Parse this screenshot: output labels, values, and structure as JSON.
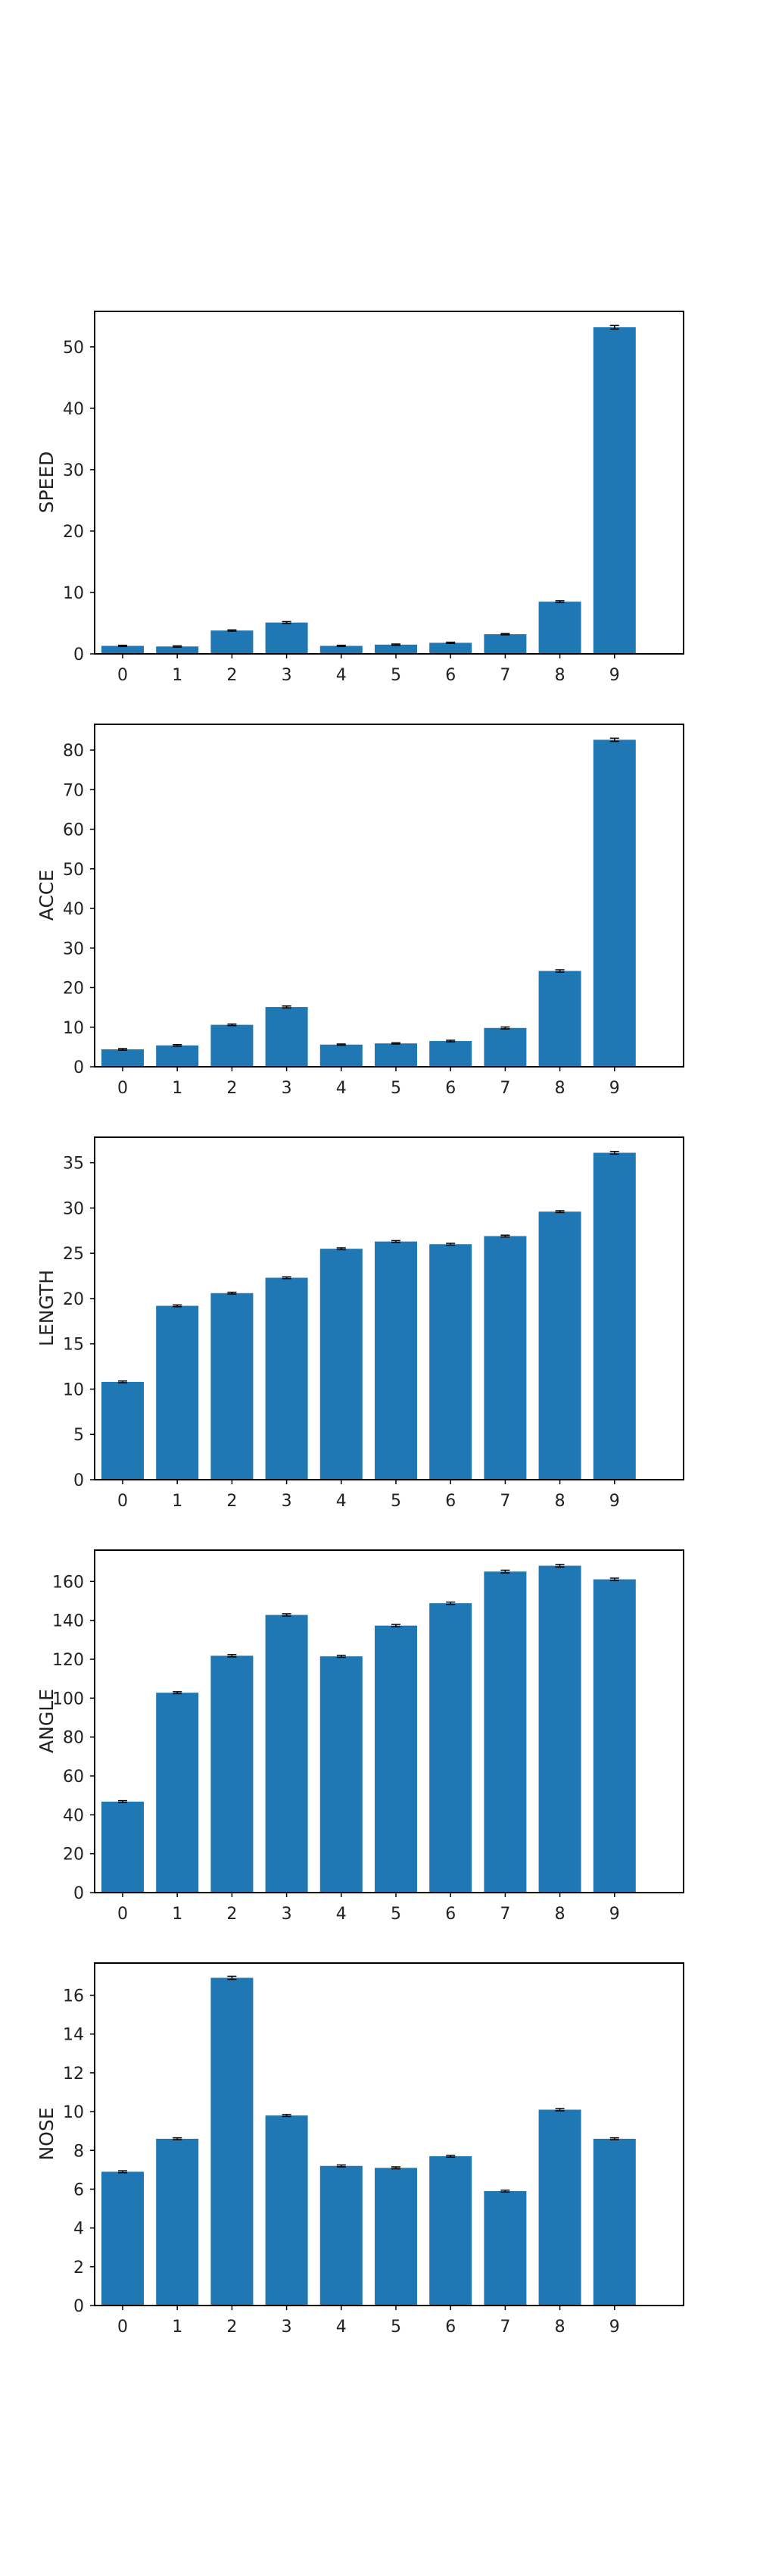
{
  "bar_color": "#1f77b4",
  "errorbar_color": "#000000",
  "frame_color": "#000000",
  "chart_data": [
    {
      "type": "bar",
      "categories": [
        "0",
        "1",
        "2",
        "3",
        "4",
        "5",
        "6",
        "7",
        "8",
        "9"
      ],
      "values": [
        1.3,
        1.2,
        3.8,
        5.1,
        1.3,
        1.5,
        1.8,
        3.2,
        8.5,
        53.2
      ],
      "errors": [
        0.1,
        0.1,
        0.1,
        0.15,
        0.1,
        0.1,
        0.1,
        0.1,
        0.15,
        0.3
      ],
      "ylabel": "SPEED",
      "ylim": [
        0,
        55.9
      ],
      "yticks": [
        0,
        10,
        20,
        30,
        40,
        50
      ],
      "grid": false
    },
    {
      "type": "bar",
      "categories": [
        "0",
        "1",
        "2",
        "3",
        "4",
        "5",
        "6",
        "7",
        "8",
        "9"
      ],
      "values": [
        4.4,
        5.4,
        10.6,
        15.1,
        5.6,
        5.9,
        6.5,
        9.8,
        24.2,
        82.6
      ],
      "errors": [
        0.2,
        0.2,
        0.2,
        0.25,
        0.15,
        0.15,
        0.2,
        0.25,
        0.3,
        0.4
      ],
      "ylabel": "ACCE",
      "ylim": [
        0,
        86.7
      ],
      "yticks": [
        0,
        10,
        20,
        30,
        40,
        50,
        60,
        70,
        80
      ],
      "grid": false
    },
    {
      "type": "bar",
      "categories": [
        "0",
        "1",
        "2",
        "3",
        "4",
        "5",
        "6",
        "7",
        "8",
        "9"
      ],
      "values": [
        10.8,
        19.2,
        20.6,
        22.3,
        25.5,
        26.3,
        26.0,
        26.9,
        29.6,
        36.1
      ],
      "errors": [
        0.1,
        0.1,
        0.1,
        0.1,
        0.1,
        0.1,
        0.1,
        0.1,
        0.1,
        0.15
      ],
      "ylabel": "LENGTH",
      "ylim": [
        0,
        37.9
      ],
      "yticks": [
        0,
        5,
        10,
        15,
        20,
        25,
        30,
        35
      ],
      "grid": false
    },
    {
      "type": "bar",
      "categories": [
        "0",
        "1",
        "2",
        "3",
        "4",
        "5",
        "6",
        "7",
        "8",
        "9"
      ],
      "values": [
        46.8,
        102.8,
        121.8,
        142.8,
        121.5,
        137.3,
        148.8,
        165.1,
        168.1,
        161.1
      ],
      "errors": [
        0.5,
        0.5,
        0.6,
        0.6,
        0.5,
        0.6,
        0.6,
        0.7,
        0.7,
        0.6
      ],
      "ylabel": "ANGLE",
      "ylim": [
        0,
        176.5
      ],
      "yticks": [
        0,
        20,
        40,
        60,
        80,
        100,
        120,
        140,
        160
      ],
      "grid": false
    },
    {
      "type": "bar",
      "categories": [
        "0",
        "1",
        "2",
        "3",
        "4",
        "5",
        "6",
        "7",
        "8",
        "9"
      ],
      "values": [
        6.9,
        8.6,
        16.9,
        9.8,
        7.2,
        7.1,
        7.7,
        5.9,
        10.1,
        8.6
      ],
      "errors": [
        0.05,
        0.05,
        0.08,
        0.05,
        0.05,
        0.05,
        0.05,
        0.05,
        0.06,
        0.05
      ],
      "ylabel": "NOSE",
      "ylim": [
        0,
        17.7
      ],
      "yticks": [
        0,
        2,
        4,
        6,
        8,
        10,
        12,
        14,
        16
      ],
      "grid": false
    }
  ]
}
